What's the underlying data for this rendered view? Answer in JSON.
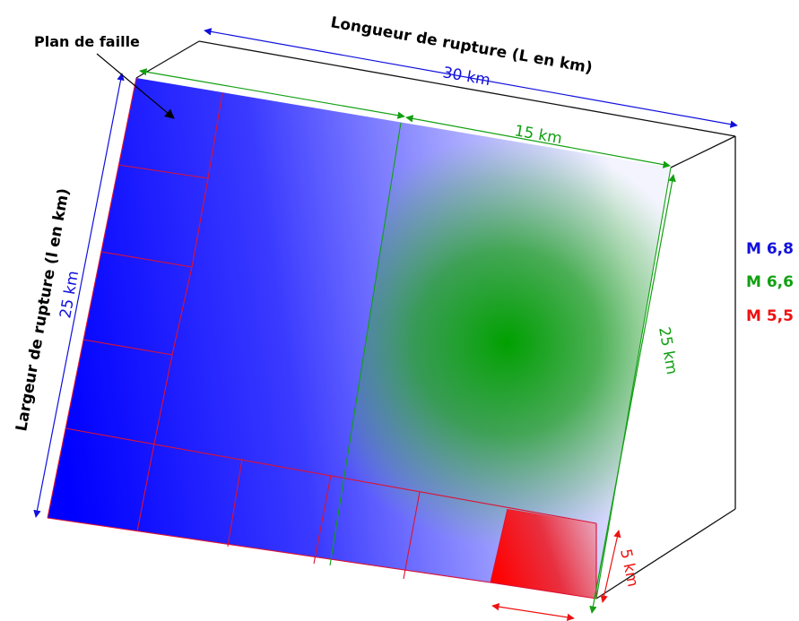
{
  "labels": {
    "fault_plane": "Plan de faille",
    "rupture_length": "Longueur de rupture (L en km)",
    "rupture_width": "Largeur de rupture (l en km)"
  },
  "dimensions": {
    "blue_length": "30 km",
    "blue_width": "25 km",
    "green_length": "15 km",
    "green_width": "25 km",
    "red_width": "5 km"
  },
  "legend": [
    {
      "text": "M 6,8",
      "color": "#1010dd"
    },
    {
      "text": "M 6,6",
      "color": "#11a011"
    },
    {
      "text": "M 5,5",
      "color": "#ee1111"
    }
  ],
  "colors": {
    "blue": "#0000ff",
    "green": "#00a000",
    "red": "#ff0000",
    "fault_grid": "#dd1133"
  }
}
